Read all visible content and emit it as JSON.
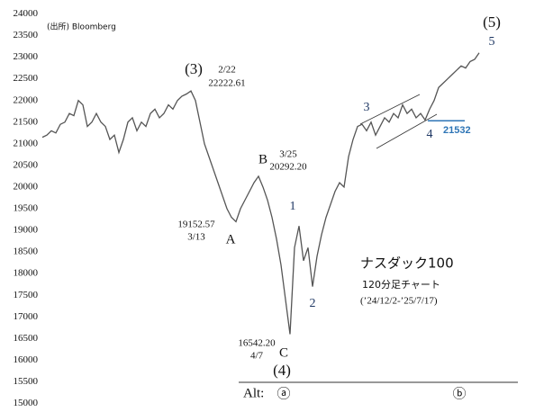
{
  "chart_data": {
    "type": "line",
    "source": "(出所) Bloomberg",
    "ylim": [
      15000,
      24000
    ],
    "yticks": [
      15000,
      15500,
      16000,
      16500,
      17000,
      17500,
      18000,
      18500,
      19000,
      19500,
      20000,
      20500,
      21000,
      21500,
      22000,
      22500,
      23000,
      23500,
      24000
    ],
    "color": "#555555",
    "values": [
      21150,
      21200,
      21300,
      21250,
      21450,
      21500,
      21700,
      21650,
      22000,
      21900,
      21400,
      21500,
      21700,
      21500,
      21400,
      21100,
      21200,
      20800,
      21100,
      21500,
      21600,
      21300,
      21500,
      21400,
      21700,
      21800,
      21600,
      21700,
      21900,
      21800,
      22000,
      22100,
      22150,
      22220,
      22000,
      21500,
      21000,
      20700,
      20400,
      20100,
      19800,
      19500,
      19300,
      19200,
      19500,
      19700,
      19900,
      20100,
      20250,
      20000,
      19700,
      19300,
      18800,
      18200,
      17400,
      16600,
      18600,
      19100,
      18300,
      18600,
      17700,
      18400,
      18900,
      19300,
      19600,
      19900,
      20100,
      20000,
      20700,
      21100,
      21400,
      21450,
      21300,
      21500,
      21200,
      21400,
      21600,
      21500,
      21700,
      21600,
      21900,
      21700,
      21800,
      21600,
      21700,
      21550,
      21800,
      22000,
      22300,
      22400,
      22500,
      22600,
      22700,
      22800,
      22750,
      22900,
      22950,
      23100
    ],
    "reference_line": {
      "value": 21532,
      "color": "#2e75b6"
    },
    "annotations": [
      "(3)",
      "2/22",
      "22222.61",
      "B",
      "3/25",
      "20292.20",
      "19152.57",
      "3/13",
      "A",
      "1",
      "2",
      "C",
      "16542.20",
      "4/7",
      "(4)",
      "Alt:",
      "ⓐ",
      "ⓑ",
      "(5)",
      "5",
      "3",
      "4",
      "ナスダック100",
      "120分足チャート",
      "(’24/12/2-’25/7/17)"
    ]
  }
}
